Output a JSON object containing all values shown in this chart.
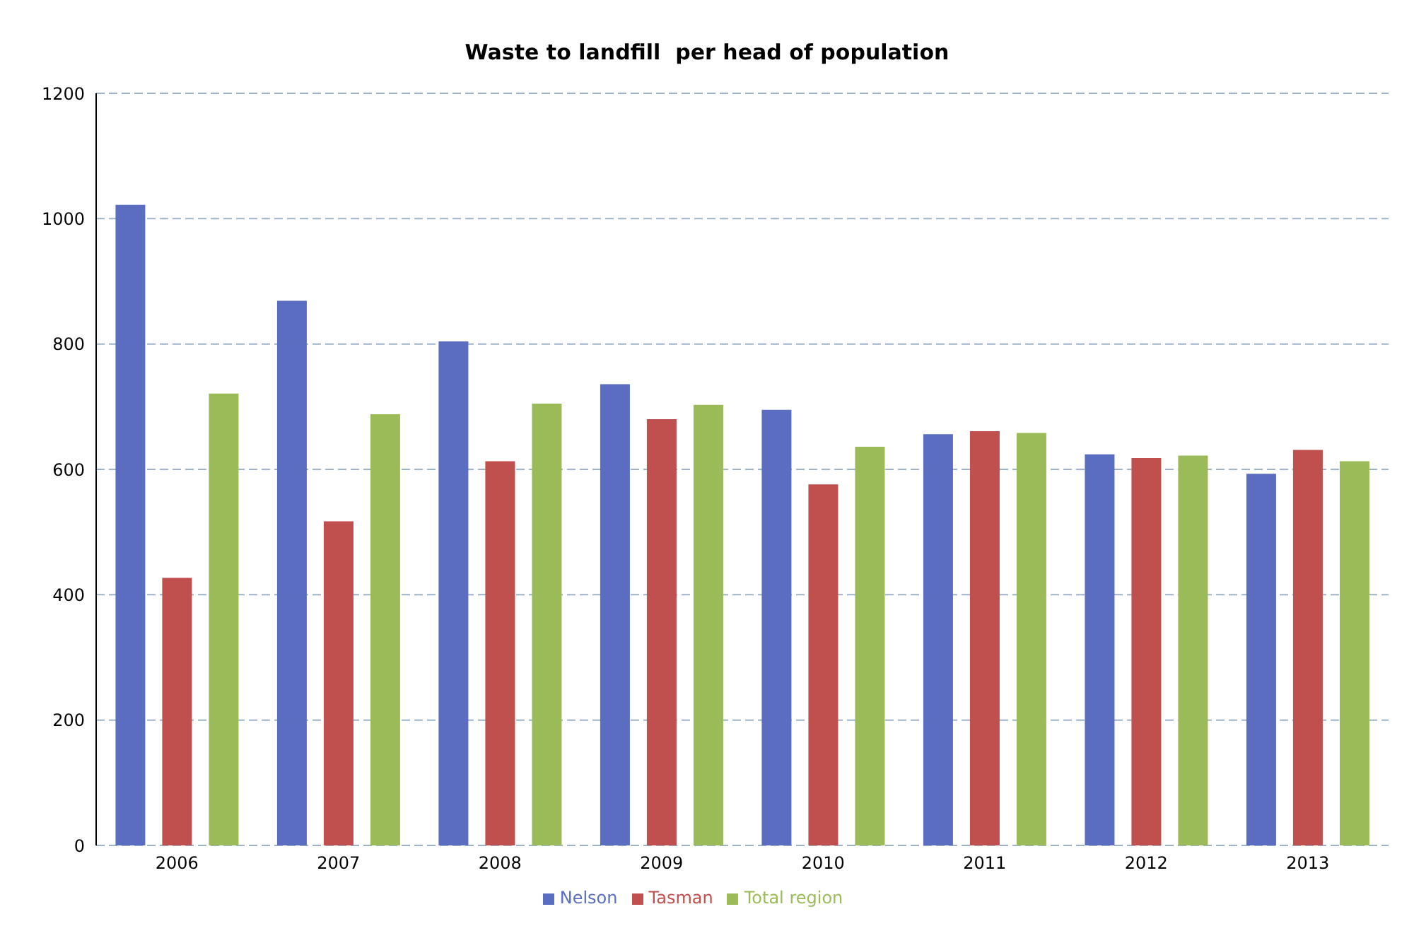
{
  "chart_data": {
    "type": "bar",
    "title": "Waste to landfill  per head of population",
    "categories": [
      "2006",
      "2007",
      "2008",
      "2009",
      "2010",
      "2011",
      "2012",
      "2013"
    ],
    "series": [
      {
        "name": "Nelson",
        "color": "#5b6dc0",
        "values": [
          1022,
          869,
          804,
          736,
          695,
          656,
          624,
          593
        ]
      },
      {
        "name": "Tasman",
        "color": "#c0504d",
        "values": [
          427,
          517,
          613,
          680,
          576,
          661,
          618,
          631
        ]
      },
      {
        "name": "Total region",
        "color": "#9bbb59",
        "values": [
          721,
          688,
          705,
          703,
          636,
          658,
          622,
          613
        ]
      }
    ],
    "ylim": [
      0,
      1200
    ],
    "yticks": [
      0,
      200,
      400,
      600,
      800,
      1000,
      1200
    ],
    "grid": "y",
    "legend": "bottom"
  }
}
